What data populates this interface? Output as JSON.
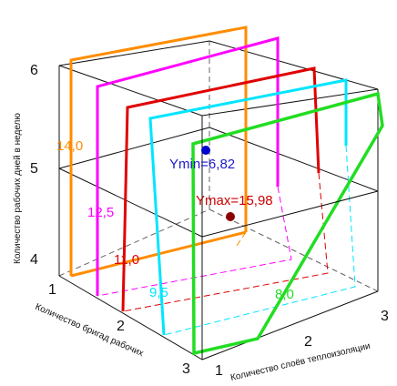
{
  "axes": {
    "vertical_label": "Количество рабочих дней в неделю",
    "left_label": "Количество бригад рабочих",
    "right_label": "Количество слоёв теплоизоляции",
    "vertical_ticks": [
      "4",
      "5",
      "6"
    ],
    "left_ticks": [
      "1",
      "2",
      "3"
    ],
    "right_ticks": [
      "1",
      "2",
      "3"
    ]
  },
  "level_labels": {
    "orange": "14,0",
    "magenta": "12,5",
    "red": "11,0",
    "cyan": "9,5",
    "green": "8,0"
  },
  "points": {
    "min_label": "Ymin=6,82",
    "max_label": "Ymax=15,98"
  },
  "colors": {
    "orange": "#ff8c00",
    "magenta": "#ff00ff",
    "red": "#e00000",
    "cyan": "#00e5ff",
    "green": "#22dd22",
    "min_point": "#0000cc",
    "max_point": "#8b0000",
    "min_text": "#1a1acc",
    "max_text": "#cc0000"
  }
}
